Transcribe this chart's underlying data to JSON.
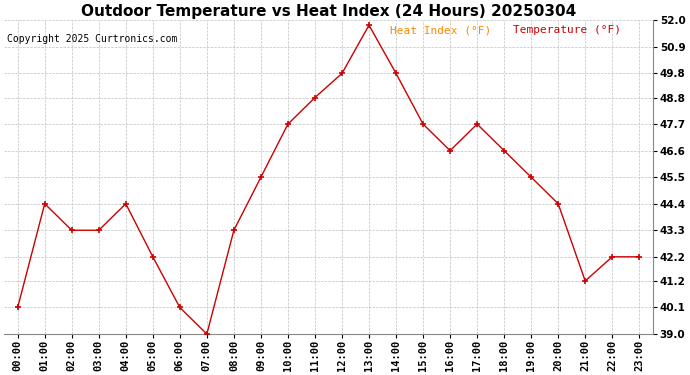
{
  "title": "Outdoor Temperature vs Heat Index (24 Hours) 20250304",
  "copyright": "Copyright 2025 Curtronics.com",
  "legend_heat_index": "Heat Index (°F)",
  "legend_temperature": "Temperature (°F)",
  "hours": [
    "00:00",
    "01:00",
    "02:00",
    "03:00",
    "04:00",
    "05:00",
    "06:00",
    "07:00",
    "08:00",
    "09:00",
    "10:00",
    "11:00",
    "12:00",
    "13:00",
    "14:00",
    "15:00",
    "16:00",
    "17:00",
    "18:00",
    "19:00",
    "20:00",
    "21:00",
    "22:00",
    "23:00"
  ],
  "temperature": [
    40.1,
    44.4,
    43.3,
    43.3,
    44.4,
    42.2,
    40.1,
    39.0,
    43.3,
    45.5,
    47.7,
    48.8,
    49.8,
    51.8,
    49.8,
    47.7,
    46.6,
    47.7,
    46.6,
    45.5,
    44.4,
    41.2,
    42.2,
    42.2
  ],
  "heat_index": [
    40.1,
    44.4,
    43.3,
    43.3,
    44.4,
    42.2,
    40.1,
    39.0,
    43.3,
    45.5,
    47.7,
    48.8,
    49.8,
    51.8,
    49.8,
    47.7,
    46.6,
    47.7,
    46.6,
    45.5,
    44.4,
    41.2,
    42.2,
    42.2
  ],
  "line_color": "#cc0000",
  "marker": "+",
  "ylim": [
    39.0,
    52.0
  ],
  "yticks": [
    39.0,
    40.1,
    41.2,
    42.2,
    43.3,
    44.4,
    45.5,
    46.6,
    47.7,
    48.8,
    49.8,
    50.9,
    52.0
  ],
  "background_color": "#ffffff",
  "grid_color": "#c0c0c0",
  "title_fontsize": 11,
  "tick_fontsize": 7.5,
  "copyright_fontsize": 7,
  "legend_fontsize": 8
}
